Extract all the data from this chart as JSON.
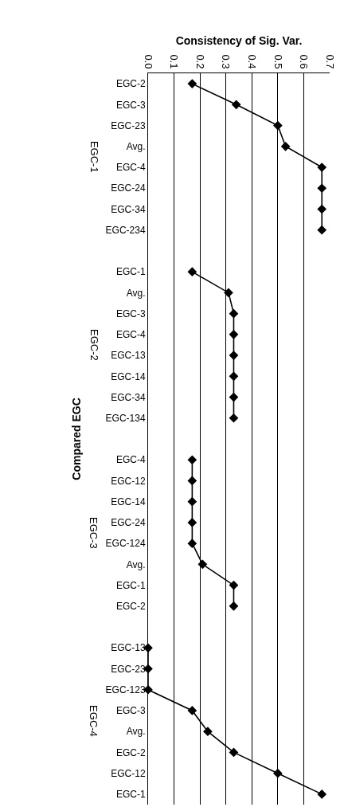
{
  "chart_data": {
    "type": "line",
    "orientation": "horizontal",
    "xlabel": "Consistency of Sig. Var.",
    "ylabel": "Compared EGC",
    "categories": [
      "EGC-2",
      "EGC-3",
      "EGC-23",
      "Avg.",
      "EGC-4",
      "EGC-24",
      "EGC-34",
      "EGC-234",
      null,
      "EGC-1",
      "Avg.",
      "EGC-3",
      "EGC-4",
      "EGC-13",
      "EGC-14",
      "EGC-34",
      "EGC-134",
      null,
      "EGC-4",
      "EGC-12",
      "EGC-14",
      "EGC-24",
      "EGC-124",
      "Avg.",
      "EGC-1",
      "EGC-2",
      null,
      "EGC-13",
      "EGC-23",
      "EGC-123",
      "EGC-3",
      "Avg.",
      "EGC-2",
      "EGC-12",
      "EGC-1"
    ],
    "series": [
      {
        "color": "#000000",
        "values": [
          0.17,
          0.34,
          0.5,
          0.53,
          0.67,
          0.67,
          0.67,
          0.67,
          null,
          null,
          null,
          null,
          null,
          null,
          null,
          null,
          null,
          null,
          null,
          null,
          null,
          null,
          null,
          null,
          null,
          null,
          null,
          null,
          null,
          null,
          null,
          null,
          null,
          null,
          null
        ]
      },
      {
        "color": "#000000",
        "values": [
          null,
          null,
          null,
          null,
          null,
          null,
          null,
          null,
          null,
          0.17,
          0.31,
          0.33,
          0.33,
          0.33,
          0.33,
          0.33,
          0.33,
          null,
          null,
          null,
          null,
          null,
          null,
          null,
          null,
          null,
          null,
          null,
          null,
          null,
          null,
          null,
          null,
          null,
          null
        ]
      },
      {
        "color": "#000000",
        "values": [
          null,
          null,
          null,
          null,
          null,
          null,
          null,
          null,
          null,
          null,
          null,
          null,
          null,
          null,
          null,
          null,
          null,
          null,
          0.17,
          0.17,
          0.17,
          0.17,
          0.17,
          0.21,
          0.33,
          0.33,
          null,
          null,
          null,
          null,
          null,
          null,
          null,
          null,
          null
        ]
      },
      {
        "color": "#000000",
        "values": [
          null,
          null,
          null,
          null,
          null,
          null,
          null,
          null,
          null,
          null,
          null,
          null,
          null,
          null,
          null,
          null,
          null,
          null,
          null,
          null,
          null,
          null,
          null,
          null,
          null,
          null,
          null,
          0,
          0,
          0,
          0.17,
          0.23,
          0.33,
          0.5,
          0.67
        ]
      }
    ],
    "annotations": [
      "EGC-1",
      "EGC-2",
      "EGC-3",
      "EGC-4"
    ],
    "xlim": [
      0,
      0.7
    ],
    "xticks": [
      {
        "value": 0,
        "label": "0.0"
      },
      0.1,
      0.2,
      0.3,
      0.4,
      0.5,
      0.6,
      0.7
    ],
    "grid": "x",
    "marker": "diamond",
    "line_style": "solid"
  }
}
